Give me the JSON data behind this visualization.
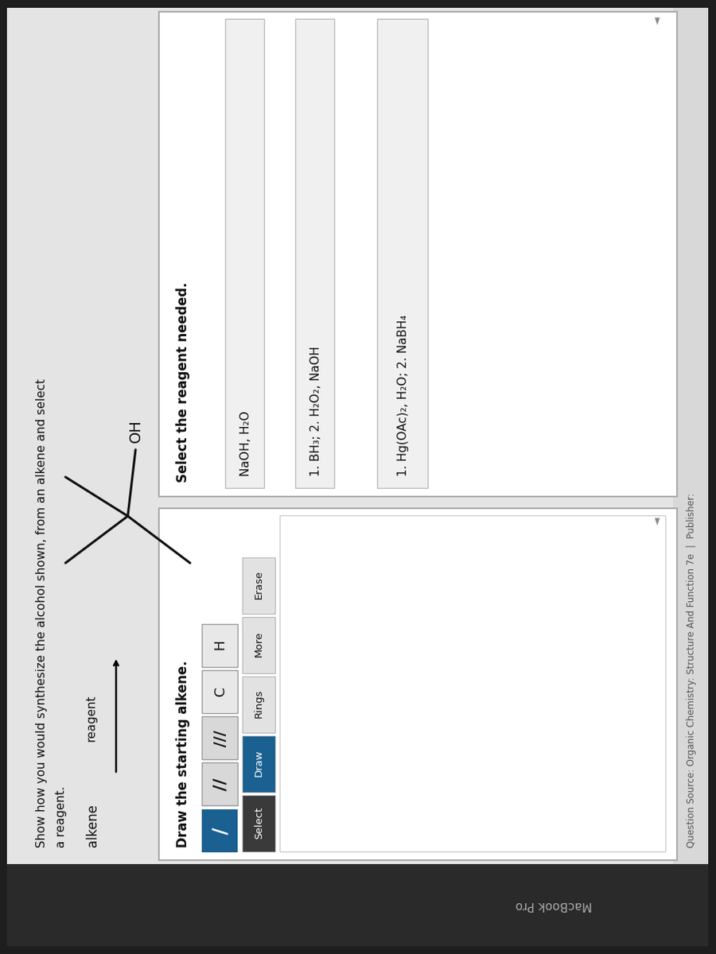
{
  "outer_bg": "#1e1e1e",
  "panel_bg": "#e8e8e8",
  "white": "#ffffff",
  "title_text1": "Show how you would synthesize the alcohol shown, from an alkene and select",
  "title_text2": "a reagent.",
  "label_alkene": "alkene",
  "label_reagent": "reagent",
  "draw_prompt": "Draw the starting alkene.",
  "select_prompt": "Select the reagent needed.",
  "btn_select": "Select",
  "btn_draw": "Draw",
  "btn_rings": "Rings",
  "btn_more": "More",
  "btn_erase": "Erase",
  "btn_c": "C",
  "btn_h": "H",
  "reagent1": "NaOH, H₂O",
  "reagent2": "1. BH₃; 2. H₂O₂, NaOH",
  "reagent3": "1. Hg(OAc)₂, H₂O; 2. NaBH₄",
  "footer": "Question Source: Organic Chemistry: Structure And Function 7e  |  Publisher:",
  "macbook": "MacBook Pro",
  "draw_btn_color": "#1a6090",
  "select_btn_color": "#3a3a3a",
  "text_dark": "#111111",
  "bond_color": "#111111",
  "light_gray_btn": "#d8d8d8",
  "medium_gray": "#c0c0c0"
}
